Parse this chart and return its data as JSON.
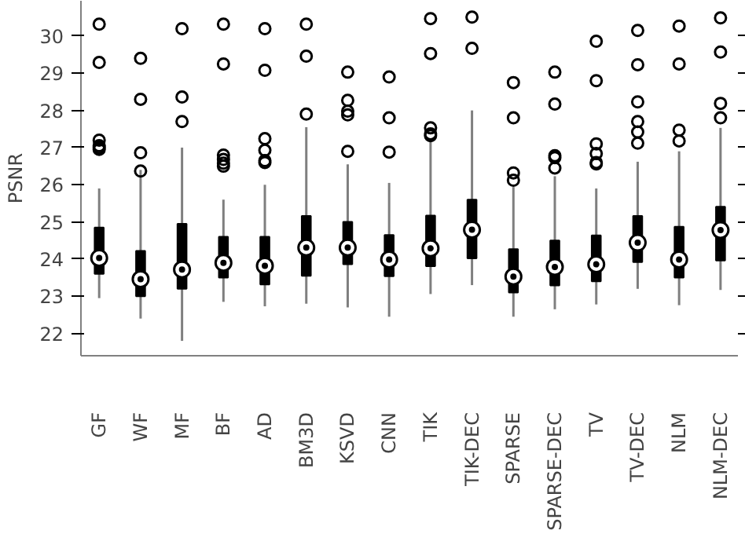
{
  "chart_data": {
    "type": "box",
    "ylabel": "PSNR",
    "categories": [
      "GF",
      "WF",
      "MF",
      "BF",
      "AD",
      "BM3D",
      "KSVD",
      "CNN",
      "TIK",
      "TIK-DEC",
      "SPARSE",
      "SPARSE-DEC",
      "TV",
      "TV-DEC",
      "NLM",
      "NLM-DEC"
    ],
    "ylim": [
      21.4,
      30.95
    ],
    "yticks": [
      22,
      23,
      24,
      25,
      26,
      27,
      28,
      29,
      30
    ],
    "grid": false,
    "boxes": [
      {
        "low": 22.95,
        "q1": 23.6,
        "median": 24.03,
        "q3": 24.85,
        "high": 25.9,
        "outliers": [
          30.32,
          29.29,
          27.2,
          27.05,
          26.95,
          27.0
        ]
      },
      {
        "low": 22.4,
        "q1": 23.0,
        "median": 23.46,
        "q3": 24.22,
        "high": 26.4,
        "outliers": [
          29.4,
          28.3,
          26.86,
          26.37
        ]
      },
      {
        "low": 21.8,
        "q1": 23.2,
        "median": 23.72,
        "q3": 24.95,
        "high": 27.0,
        "outliers": [
          30.2,
          28.36,
          27.7
        ]
      },
      {
        "low": 22.85,
        "q1": 23.5,
        "median": 23.9,
        "q3": 24.6,
        "high": 25.6,
        "outliers": [
          30.32,
          29.25,
          26.8,
          26.68,
          26.58,
          26.5
        ]
      },
      {
        "low": 22.73,
        "q1": 23.32,
        "median": 23.82,
        "q3": 24.6,
        "high": 26.0,
        "outliers": [
          30.2,
          29.08,
          27.24,
          26.93,
          26.65,
          26.6
        ]
      },
      {
        "low": 22.8,
        "q1": 23.55,
        "median": 24.31,
        "q3": 25.16,
        "high": 27.55,
        "outliers": [
          30.32,
          29.46,
          27.9
        ]
      },
      {
        "low": 22.7,
        "q1": 23.86,
        "median": 24.31,
        "q3": 25.0,
        "high": 26.55,
        "outliers": [
          29.03,
          28.27,
          27.98,
          27.88,
          26.9
        ]
      },
      {
        "low": 22.45,
        "q1": 23.54,
        "median": 23.99,
        "q3": 24.65,
        "high": 26.05,
        "outliers": [
          28.9,
          27.8,
          26.88
        ]
      },
      {
        "low": 23.06,
        "q1": 23.81,
        "median": 24.29,
        "q3": 25.17,
        "high": 27.22,
        "outliers": [
          30.47,
          29.53,
          27.53,
          27.37,
          27.32
        ]
      },
      {
        "low": 23.3,
        "q1": 24.02,
        "median": 24.79,
        "q3": 25.6,
        "high": 28.0,
        "outliers": [
          30.51,
          29.67
        ]
      },
      {
        "low": 22.45,
        "q1": 23.1,
        "median": 23.53,
        "q3": 24.27,
        "high": 25.94,
        "outliers": [
          28.75,
          27.8,
          26.32,
          26.12
        ]
      },
      {
        "low": 22.65,
        "q1": 23.29,
        "median": 23.79,
        "q3": 24.5,
        "high": 26.23,
        "outliers": [
          29.03,
          28.17,
          26.78,
          26.73,
          26.45
        ]
      },
      {
        "low": 22.78,
        "q1": 23.4,
        "median": 23.86,
        "q3": 24.64,
        "high": 25.9,
        "outliers": [
          29.86,
          28.8,
          27.1,
          26.84,
          26.6,
          26.56
        ]
      },
      {
        "low": 23.2,
        "q1": 23.92,
        "median": 24.44,
        "q3": 25.16,
        "high": 26.62,
        "outliers": [
          30.15,
          29.23,
          28.23,
          27.7,
          27.42,
          27.12
        ]
      },
      {
        "low": 22.76,
        "q1": 23.5,
        "median": 23.99,
        "q3": 24.87,
        "high": 26.9,
        "outliers": [
          30.27,
          29.25,
          27.47,
          27.18
        ]
      },
      {
        "low": 23.17,
        "q1": 23.96,
        "median": 24.78,
        "q3": 25.41,
        "high": 27.53,
        "outliers": [
          30.49,
          29.57,
          28.19,
          27.8
        ]
      }
    ]
  }
}
